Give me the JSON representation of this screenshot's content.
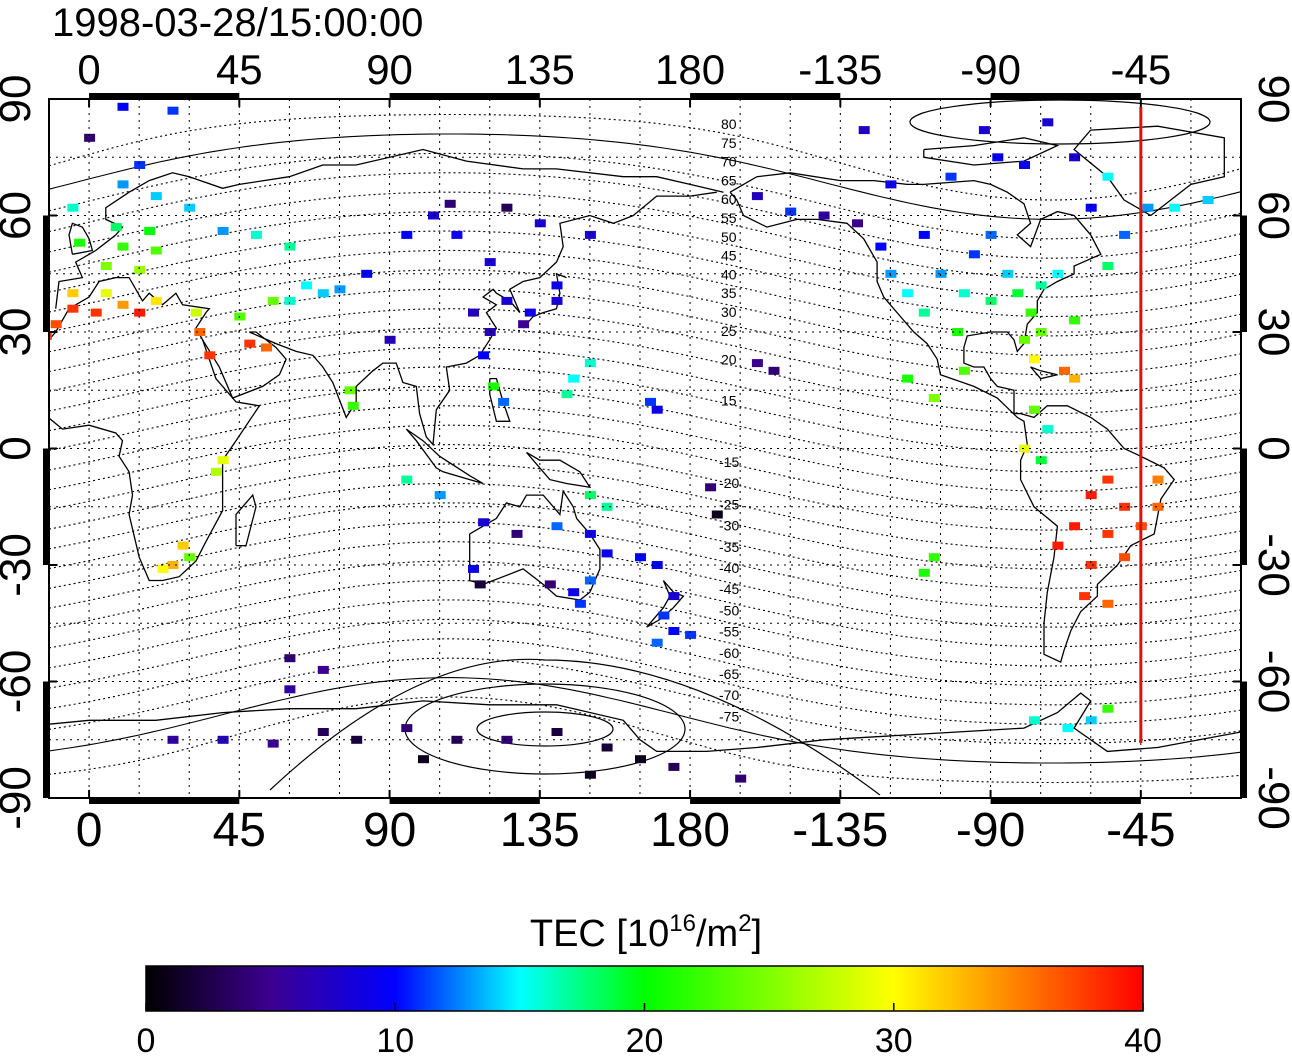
{
  "map": {
    "timestamp": "1998-03-28/15:00:00",
    "lon_ticks": [
      "0",
      "45",
      "90",
      "135",
      "180",
      "-135",
      "-90",
      "-45"
    ],
    "lat_ticks": [
      "90",
      "60",
      "30",
      "0",
      "-30",
      "-60",
      "-90"
    ],
    "lon_tick_values": [
      0,
      45,
      90,
      135,
      180,
      225,
      270,
      315
    ],
    "lat_tick_values": [
      90,
      60,
      30,
      0,
      -30,
      -60,
      -90
    ],
    "lon_range": [
      -12,
      345
    ],
    "lat_range": [
      -90,
      90
    ],
    "contour_labels_north": [
      "80",
      "75",
      "70",
      "65",
      "60",
      "55",
      "50",
      "45",
      "40",
      "35",
      "30",
      "25",
      "20",
      "15"
    ],
    "contour_labels_south": [
      "-15",
      "-20",
      "-25",
      "-30",
      "-35",
      "-40",
      "-45",
      "-50",
      "-55",
      "-60",
      "-65",
      "-70",
      "-75"
    ],
    "marker_longitude": -45,
    "marker_color": "#e01010",
    "cells": [
      {
        "lon": 0,
        "lat": 80,
        "v": 4
      },
      {
        "lon": 10,
        "lat": 88,
        "v": 10
      },
      {
        "lon": 25,
        "lat": 87,
        "v": 11
      },
      {
        "lon": 15,
        "lat": 73,
        "v": 11
      },
      {
        "lon": 10,
        "lat": 68,
        "v": 13
      },
      {
        "lon": 20,
        "lat": 65,
        "v": 14
      },
      {
        "lon": -5,
        "lat": 62,
        "v": 16
      },
      {
        "lon": 30,
        "lat": 62,
        "v": 14
      },
      {
        "lon": 8,
        "lat": 57,
        "v": 18
      },
      {
        "lon": 18,
        "lat": 56,
        "v": 20
      },
      {
        "lon": -3,
        "lat": 53,
        "v": 21
      },
      {
        "lon": 10,
        "lat": 52,
        "v": 22
      },
      {
        "lon": 20,
        "lat": 51,
        "v": 23
      },
      {
        "lon": 5,
        "lat": 47,
        "v": 25
      },
      {
        "lon": 15,
        "lat": 46,
        "v": 26
      },
      {
        "lon": -5,
        "lat": 40,
        "v": 32
      },
      {
        "lon": 5,
        "lat": 40,
        "v": 29
      },
      {
        "lon": 10,
        "lat": 37,
        "v": 34
      },
      {
        "lon": 20,
        "lat": 38,
        "v": 31
      },
      {
        "lon": 32,
        "lat": 35,
        "v": 28
      },
      {
        "lon": -10,
        "lat": 32,
        "v": 37
      },
      {
        "lon": -5,
        "lat": 36,
        "v": 38
      },
      {
        "lon": 2,
        "lat": 35,
        "v": 38
      },
      {
        "lon": 15,
        "lat": 35,
        "v": 39
      },
      {
        "lon": -13,
        "lat": 29,
        "v": 38
      },
      {
        "lon": 33,
        "lat": 30,
        "v": 36
      },
      {
        "lon": 36,
        "lat": 24,
        "v": 38
      },
      {
        "lon": 48,
        "lat": 27,
        "v": 38
      },
      {
        "lon": 53,
        "lat": 26,
        "v": 36
      },
      {
        "lon": 45,
        "lat": 34,
        "v": 23
      },
      {
        "lon": 55,
        "lat": 38,
        "v": 24
      },
      {
        "lon": 60,
        "lat": 38,
        "v": 16
      },
      {
        "lon": 65,
        "lat": 42,
        "v": 15
      },
      {
        "lon": 70,
        "lat": 40,
        "v": 14
      },
      {
        "lon": 75,
        "lat": 41,
        "v": 13
      },
      {
        "lon": 83,
        "lat": 45,
        "v": 10
      },
      {
        "lon": 50,
        "lat": 55,
        "v": 16
      },
      {
        "lon": 60,
        "lat": 52,
        "v": 17
      },
      {
        "lon": 40,
        "lat": 56,
        "v": 13
      },
      {
        "lon": 78,
        "lat": 15,
        "v": 24
      },
      {
        "lon": 79,
        "lat": 11,
        "v": 22
      },
      {
        "lon": 40,
        "lat": -3,
        "v": 29
      },
      {
        "lon": 38,
        "lat": -6,
        "v": 27
      },
      {
        "lon": 28,
        "lat": -25,
        "v": 32
      },
      {
        "lon": 25,
        "lat": -30,
        "v": 33
      },
      {
        "lon": 30,
        "lat": -28,
        "v": 24
      },
      {
        "lon": 22,
        "lat": -31,
        "v": 30
      },
      {
        "lon": 103,
        "lat": 60,
        "v": 8
      },
      {
        "lon": 108,
        "lat": 63,
        "v": 4
      },
      {
        "lon": 125,
        "lat": 62,
        "v": 3
      },
      {
        "lon": 135,
        "lat": 58,
        "v": 8
      },
      {
        "lon": 150,
        "lat": 55,
        "v": 8
      },
      {
        "lon": 95,
        "lat": 55,
        "v": 10
      },
      {
        "lon": 110,
        "lat": 55,
        "v": 9
      },
      {
        "lon": 120,
        "lat": 48,
        "v": 8
      },
      {
        "lon": 115,
        "lat": 35,
        "v": 7
      },
      {
        "lon": 125,
        "lat": 38,
        "v": 8
      },
      {
        "lon": 132,
        "lat": 35,
        "v": 9
      },
      {
        "lon": 140,
        "lat": 38,
        "v": 8
      },
      {
        "lon": 140,
        "lat": 42,
        "v": 9
      },
      {
        "lon": 130,
        "lat": 32,
        "v": 5
      },
      {
        "lon": 120,
        "lat": 30,
        "v": 7
      },
      {
        "lon": 118,
        "lat": 24,
        "v": 10
      },
      {
        "lon": 121,
        "lat": 16,
        "v": 21
      },
      {
        "lon": 124,
        "lat": 12,
        "v": 12
      },
      {
        "lon": 145,
        "lat": 18,
        "v": 15
      },
      {
        "lon": 150,
        "lat": 22,
        "v": 16
      },
      {
        "lon": 143,
        "lat": 14,
        "v": 17
      },
      {
        "lon": 168,
        "lat": 12,
        "v": 11
      },
      {
        "lon": 170,
        "lat": 10,
        "v": 9
      },
      {
        "lon": 90,
        "lat": 28,
        "v": 7
      },
      {
        "lon": 95,
        "lat": -8,
        "v": 17
      },
      {
        "lon": 105,
        "lat": -12,
        "v": 13
      },
      {
        "lon": 118,
        "lat": -19,
        "v": 8
      },
      {
        "lon": 128,
        "lat": -22,
        "v": 4
      },
      {
        "lon": 140,
        "lat": -20,
        "v": 12
      },
      {
        "lon": 150,
        "lat": -22,
        "v": 9
      },
      {
        "lon": 150,
        "lat": -12,
        "v": 18
      },
      {
        "lon": 155,
        "lat": -15,
        "v": 17
      },
      {
        "lon": 165,
        "lat": -28,
        "v": 10
      },
      {
        "lon": 170,
        "lat": -30,
        "v": 10
      },
      {
        "lon": 115,
        "lat": -31,
        "v": 9
      },
      {
        "lon": 117,
        "lat": -35,
        "v": 2
      },
      {
        "lon": 138,
        "lat": -35,
        "v": 4
      },
      {
        "lon": 145,
        "lat": -37,
        "v": 9
      },
      {
        "lon": 150,
        "lat": -34,
        "v": 12
      },
      {
        "lon": 147,
        "lat": -40,
        "v": 11
      },
      {
        "lon": 155,
        "lat": -27,
        "v": 9
      },
      {
        "lon": 175,
        "lat": -38,
        "v": 8
      },
      {
        "lon": 172,
        "lat": -43,
        "v": 11
      },
      {
        "lon": 175,
        "lat": -47,
        "v": 10
      },
      {
        "lon": 188,
        "lat": -17,
        "v": 1
      },
      {
        "lon": 186,
        "lat": -10,
        "v": 4
      },
      {
        "lon": 200,
        "lat": 22,
        "v": 5
      },
      {
        "lon": 205,
        "lat": 20,
        "v": 4
      },
      {
        "lon": 170,
        "lat": -50,
        "v": 12
      },
      {
        "lon": 180,
        "lat": -48,
        "v": 11
      },
      {
        "lon": 200,
        "lat": 65,
        "v": 7
      },
      {
        "lon": 210,
        "lat": 61,
        "v": 11
      },
      {
        "lon": 220,
        "lat": 60,
        "v": 6
      },
      {
        "lon": 230,
        "lat": 58,
        "v": 5
      },
      {
        "lon": 237,
        "lat": 52,
        "v": 10
      },
      {
        "lon": 240,
        "lat": 45,
        "v": 13
      },
      {
        "lon": 245,
        "lat": 40,
        "v": 15
      },
      {
        "lon": 250,
        "lat": 35,
        "v": 17
      },
      {
        "lon": 255,
        "lat": 45,
        "v": 13
      },
      {
        "lon": 262,
        "lat": 40,
        "v": 16
      },
      {
        "lon": 270,
        "lat": 38,
        "v": 18
      },
      {
        "lon": 278,
        "lat": 40,
        "v": 19
      },
      {
        "lon": 282,
        "lat": 35,
        "v": 22
      },
      {
        "lon": 285,
        "lat": 42,
        "v": 17
      },
      {
        "lon": 290,
        "lat": 45,
        "v": 15
      },
      {
        "lon": 275,
        "lat": 45,
        "v": 14
      },
      {
        "lon": 265,
        "lat": 50,
        "v": 11
      },
      {
        "lon": 250,
        "lat": 55,
        "v": 10
      },
      {
        "lon": 270,
        "lat": 55,
        "v": 12
      },
      {
        "lon": 260,
        "lat": 30,
        "v": 21
      },
      {
        "lon": 280,
        "lat": 28,
        "v": 24
      },
      {
        "lon": 285,
        "lat": 30,
        "v": 24
      },
      {
        "lon": 295,
        "lat": 33,
        "v": 22
      },
      {
        "lon": 262,
        "lat": 20,
        "v": 23
      },
      {
        "lon": 283,
        "lat": 23,
        "v": 30
      },
      {
        "lon": 292,
        "lat": 20,
        "v": 36
      },
      {
        "lon": 295,
        "lat": 18,
        "v": 33
      },
      {
        "lon": 245,
        "lat": 18,
        "v": 21
      },
      {
        "lon": 253,
        "lat": 13,
        "v": 25
      },
      {
        "lon": 283,
        "lat": 10,
        "v": 24
      },
      {
        "lon": 287,
        "lat": 5,
        "v": 16
      },
      {
        "lon": 280,
        "lat": 0,
        "v": 29
      },
      {
        "lon": 285,
        "lat": -3,
        "v": 19
      },
      {
        "lon": 272,
        "lat": 75,
        "v": 10
      },
      {
        "lon": 280,
        "lat": 73,
        "v": 9
      },
      {
        "lon": 295,
        "lat": 75,
        "v": 8
      },
      {
        "lon": 305,
        "lat": 70,
        "v": 15
      },
      {
        "lon": 300,
        "lat": 62,
        "v": 10
      },
      {
        "lon": 317,
        "lat": 62,
        "v": 13
      },
      {
        "lon": 325,
        "lat": 62,
        "v": 15
      },
      {
        "lon": 335,
        "lat": 64,
        "v": 14
      },
      {
        "lon": 310,
        "lat": 55,
        "v": 12
      },
      {
        "lon": 305,
        "lat": 47,
        "v": 18
      },
      {
        "lon": 258,
        "lat": 70,
        "v": 11
      },
      {
        "lon": 240,
        "lat": 68,
        "v": 9
      },
      {
        "lon": 232,
        "lat": 82,
        "v": 7
      },
      {
        "lon": 268,
        "lat": 82,
        "v": 8
      },
      {
        "lon": 287,
        "lat": 84,
        "v": 8
      },
      {
        "lon": 300,
        "lat": -12,
        "v": 39
      },
      {
        "lon": 305,
        "lat": -8,
        "v": 38
      },
      {
        "lon": 310,
        "lat": -15,
        "v": 38
      },
      {
        "lon": 315,
        "lat": -20,
        "v": 37
      },
      {
        "lon": 305,
        "lat": -22,
        "v": 38
      },
      {
        "lon": 300,
        "lat": -30,
        "v": 38
      },
      {
        "lon": 310,
        "lat": -28,
        "v": 37
      },
      {
        "lon": 320,
        "lat": -15,
        "v": 36
      },
      {
        "lon": 295,
        "lat": -20,
        "v": 39
      },
      {
        "lon": 290,
        "lat": -25,
        "v": 39
      },
      {
        "lon": 298,
        "lat": -38,
        "v": 38
      },
      {
        "lon": 305,
        "lat": -40,
        "v": 36
      },
      {
        "lon": 320,
        "lat": -8,
        "v": 35
      },
      {
        "lon": 250,
        "lat": -32,
        "v": 21
      },
      {
        "lon": 253,
        "lat": -28,
        "v": 22
      },
      {
        "lon": 283,
        "lat": -70,
        "v": 16
      },
      {
        "lon": 293,
        "lat": -72,
        "v": 15
      },
      {
        "lon": 300,
        "lat": -70,
        "v": 14
      },
      {
        "lon": 305,
        "lat": -67,
        "v": 22
      },
      {
        "lon": 25,
        "lat": -75,
        "v": 6
      },
      {
        "lon": 40,
        "lat": -75,
        "v": 7
      },
      {
        "lon": 55,
        "lat": -76,
        "v": 5
      },
      {
        "lon": 70,
        "lat": -73,
        "v": 3
      },
      {
        "lon": 80,
        "lat": -75,
        "v": 2
      },
      {
        "lon": 95,
        "lat": -72,
        "v": 4
      },
      {
        "lon": 110,
        "lat": -75,
        "v": 3
      },
      {
        "lon": 125,
        "lat": -75,
        "v": 4
      },
      {
        "lon": 140,
        "lat": -73,
        "v": 2
      },
      {
        "lon": 155,
        "lat": -77,
        "v": 2
      },
      {
        "lon": 165,
        "lat": -80,
        "v": 1
      },
      {
        "lon": 175,
        "lat": -82,
        "v": 3
      },
      {
        "lon": 195,
        "lat": -85,
        "v": 4
      },
      {
        "lon": 100,
        "lat": -80,
        "v": 1
      },
      {
        "lon": 150,
        "lat": -84,
        "v": 1
      },
      {
        "lon": 70,
        "lat": -57,
        "v": 5
      },
      {
        "lon": 60,
        "lat": -54,
        "v": 4
      },
      {
        "lon": 60,
        "lat": -62,
        "v": 6
      }
    ]
  },
  "colorbar": {
    "title_main": "TEC  [10",
    "title_sup1": "16",
    "title_mid": "/m",
    "title_sup2": "2",
    "title_end": "]",
    "tick_labels": [
      "0",
      "10",
      "20",
      "30",
      "40"
    ],
    "range": [
      0,
      40
    ],
    "stops": [
      {
        "v": 0,
        "c": "#000000"
      },
      {
        "v": 5,
        "c": "#3c0090"
      },
      {
        "v": 10,
        "c": "#0000ff"
      },
      {
        "v": 15,
        "c": "#00ffff"
      },
      {
        "v": 20,
        "c": "#00ff00"
      },
      {
        "v": 30,
        "c": "#ffff00"
      },
      {
        "v": 35,
        "c": "#ff7f00"
      },
      {
        "v": 40,
        "c": "#ff0000"
      }
    ]
  }
}
